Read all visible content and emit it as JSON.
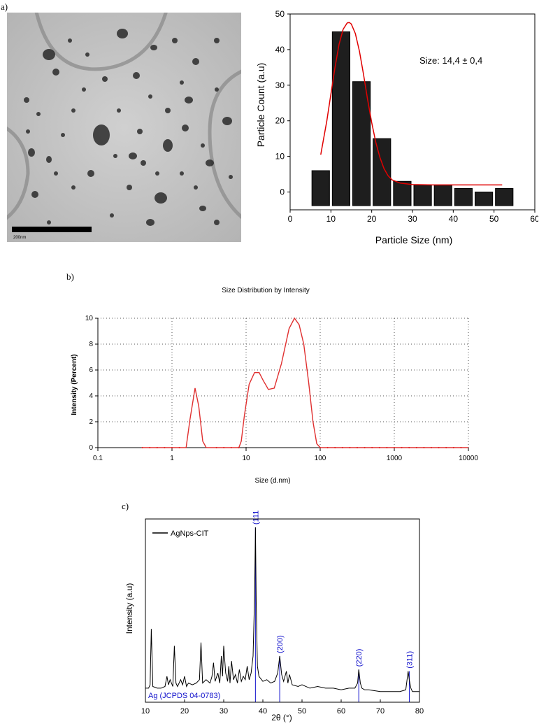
{
  "labels": {
    "a": "a)",
    "b": "b)",
    "c": "c)"
  },
  "tem": {
    "scale_bar_label": "200nm"
  },
  "chart_data": [
    {
      "type": "bar",
      "title": "",
      "xlabel": "Particle Size (nm)",
      "ylabel": "Particle Count (a.u)",
      "xlim": [
        0,
        60
      ],
      "ylim": [
        -5,
        50
      ],
      "xticks": [
        0,
        10,
        20,
        30,
        40,
        50,
        60
      ],
      "yticks": [
        0,
        10,
        20,
        30,
        40,
        50
      ],
      "bin_width": 5,
      "bin_centers": [
        7.5,
        12.5,
        17.5,
        22.5,
        27.5,
        32.5,
        37.5,
        42.5,
        47.5,
        52.5
      ],
      "values": [
        6,
        45,
        31,
        15,
        3,
        2,
        2,
        1,
        0,
        1
      ],
      "fit_curve": {
        "color": "#e00000",
        "x": [
          7.5,
          9,
          10,
          11,
          12,
          13,
          14,
          14.5,
          15,
          16,
          17,
          18,
          19,
          20,
          21,
          22,
          23,
          24,
          25,
          27,
          30,
          35,
          40,
          45,
          52
        ],
        "y": [
          10.5,
          20,
          27.5,
          35,
          41.5,
          45.7,
          47.5,
          47.6,
          47.2,
          44.5,
          39.5,
          33,
          26,
          19.5,
          14,
          9.8,
          6.6,
          4.6,
          3.4,
          2.5,
          2.1,
          2,
          2,
          2,
          2
        ]
      },
      "annotation": "Size: 14,4 ± 0,4"
    },
    {
      "type": "line",
      "title": "Size Distribution by Intensity",
      "xlabel": "Size (d.nm)",
      "ylabel": "Intensity (Percent)",
      "xscale": "log",
      "xlim": [
        0.1,
        10000
      ],
      "ylim": [
        0,
        10
      ],
      "xtick_labels": [
        "0.1",
        "1",
        "10",
        "100",
        "1000",
        "10000"
      ],
      "yticks": [
        0,
        2,
        4,
        6,
        8,
        10
      ],
      "grid": true,
      "color": "#e03030",
      "x": [
        0.4,
        1.55,
        1.75,
        2.05,
        2.3,
        2.6,
        2.9,
        3.2,
        8.0,
        8.6,
        9.5,
        11,
        13,
        15,
        17,
        20,
        24,
        30,
        38,
        45,
        52,
        60,
        70,
        80,
        90,
        100,
        10000
      ],
      "y": [
        0,
        0,
        2.2,
        4.6,
        3.2,
        0.5,
        0,
        0,
        0,
        0.5,
        2.5,
        4.9,
        5.8,
        5.8,
        5.2,
        4.5,
        4.6,
        6.5,
        9.2,
        10,
        9.5,
        8,
        5,
        2,
        0.3,
        0,
        0
      ]
    },
    {
      "type": "line",
      "title": "",
      "xlabel": "2θ (°)",
      "ylabel": "Intensity (a.u)",
      "xlim": [
        10,
        80
      ],
      "ylim": [
        0,
        100
      ],
      "xticks": [
        10,
        20,
        30,
        40,
        50,
        60,
        70,
        80
      ],
      "series": [
        {
          "name": "AgNps-CIT",
          "color": "#000000",
          "x": [
            10,
            10.8,
            11.2,
            11.5,
            11.9,
            13,
            14,
            15,
            15.5,
            15.9,
            16.3,
            17,
            17.4,
            17.8,
            18.2,
            19,
            19.5,
            20,
            20.5,
            21,
            22,
            23,
            23.8,
            24.2,
            24.6,
            25.5,
            26.5,
            27,
            27.4,
            27.8,
            28.5,
            29,
            29.4,
            29.7,
            30,
            30.5,
            31,
            31.3,
            31.6,
            32,
            32.5,
            33,
            33.5,
            34,
            34.5,
            35,
            35.5,
            36,
            36.5,
            37,
            37.5,
            37.9,
            38.1,
            38.3,
            38.6,
            39,
            40,
            41,
            42,
            43,
            43.8,
            44.3,
            44.8,
            45.3,
            46,
            46.4,
            46.8,
            47.5,
            49,
            50,
            52,
            54,
            56,
            58,
            60,
            62,
            63.5,
            64.2,
            64.5,
            64.9,
            65.3,
            66,
            67,
            70,
            73,
            75,
            76.5,
            77.1,
            77.4,
            77.8,
            78.2,
            79,
            80
          ],
          "y": [
            5,
            5,
            7,
            40,
            6,
            5,
            5,
            6,
            12,
            7,
            10,
            6,
            30,
            8,
            6,
            10,
            7,
            12,
            6,
            8,
            7,
            8,
            10,
            32,
            8,
            10,
            8,
            12,
            20,
            9,
            14,
            8,
            24,
            12,
            30,
            14,
            9,
            18,
            8,
            21,
            10,
            13,
            8,
            16,
            9,
            12,
            10,
            18,
            10,
            14,
            24,
            60,
            100,
            55,
            18,
            12,
            9,
            10,
            8,
            9,
            14,
            24,
            13,
            9,
            15,
            8,
            13,
            7,
            6,
            7,
            5,
            6,
            5,
            5,
            4,
            5,
            5,
            8,
            16,
            8,
            5,
            4,
            4,
            3,
            3,
            3,
            4,
            15,
            10,
            5,
            3,
            3,
            3
          ]
        }
      ],
      "reference": {
        "label": "Ag (JCPDS 04-0783)",
        "color": "#1010cc",
        "lines": [
          {
            "x": 38.1,
            "top": 100,
            "hkl": "(111)"
          },
          {
            "x": 44.3,
            "top": 24,
            "hkl": "(200)"
          },
          {
            "x": 64.5,
            "top": 16,
            "hkl": "(220)"
          },
          {
            "x": 77.4,
            "top": 15,
            "hkl": "(311)"
          }
        ]
      }
    }
  ]
}
